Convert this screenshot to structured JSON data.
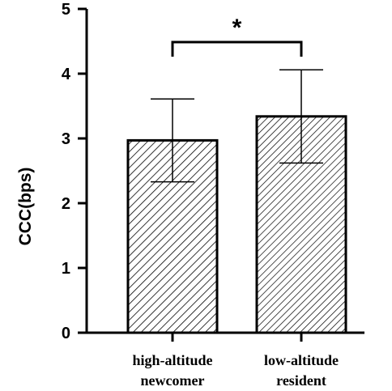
{
  "chart_data": {
    "type": "bar",
    "title": "",
    "xlabel": "",
    "ylabel": "CCC(bps)",
    "ylim": [
      0,
      5
    ],
    "yticks": [
      "0",
      "1",
      "2",
      "3",
      "4",
      "5"
    ],
    "categories": [
      [
        "high-altitude",
        "newcomer"
      ],
      [
        "low-altitude",
        "resident"
      ]
    ],
    "values": [
      2.97,
      3.34
    ],
    "errors": [
      0.64,
      0.72
    ],
    "bar_patterns": [
      "diagonal-hatch-forward",
      "diagonal-hatch-forward-dense"
    ],
    "significance": {
      "between": [
        0,
        1
      ],
      "label": "*"
    },
    "grid": false,
    "legend": "none",
    "colors": {
      "bar_fill": "#ffffff",
      "hatch": "#000000",
      "stroke": "#000000"
    }
  }
}
